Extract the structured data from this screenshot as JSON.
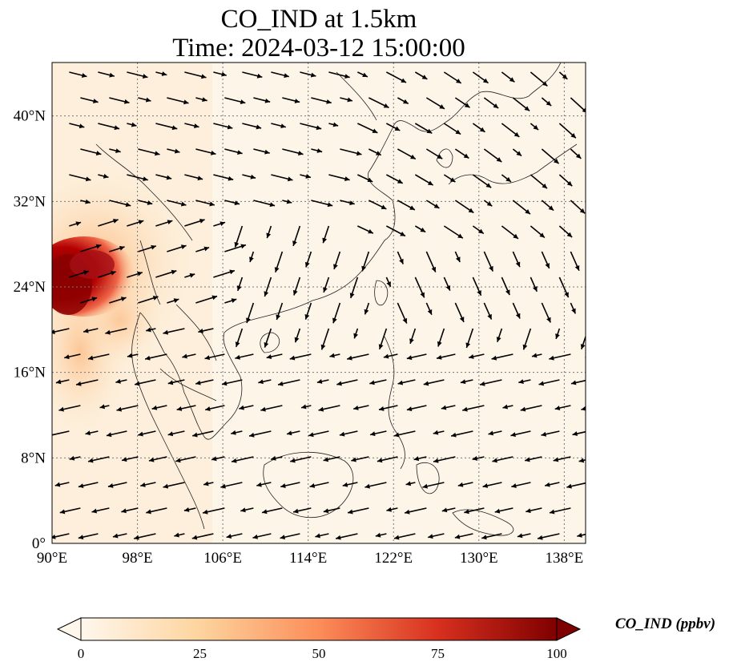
{
  "title": {
    "line1": "CO_IND at 1.5km",
    "line2": "Time: 2024-03-12 15:00:00"
  },
  "axes": {
    "x_ticks": [
      "90°E",
      "98°E",
      "106°E",
      "114°E",
      "122°E",
      "130°E",
      "138°E"
    ],
    "y_ticks": [
      "0°",
      "8°N",
      "16°N",
      "24°N",
      "32°N",
      "40°N"
    ],
    "lon_range": [
      90,
      140
    ],
    "lat_range": [
      0,
      45
    ],
    "grid": "dotted"
  },
  "colorbar": {
    "label": "CO_IND (ppbv)",
    "ticks": [
      "0",
      "25",
      "50",
      "75",
      "100"
    ],
    "range": [
      0,
      100
    ],
    "colormap": "OrRd",
    "colors": [
      "#fff7ec",
      "#fdd49e",
      "#fc8d59",
      "#d7301f",
      "#7f0000"
    ],
    "extend": "both"
  },
  "overlay": "wind vectors"
}
